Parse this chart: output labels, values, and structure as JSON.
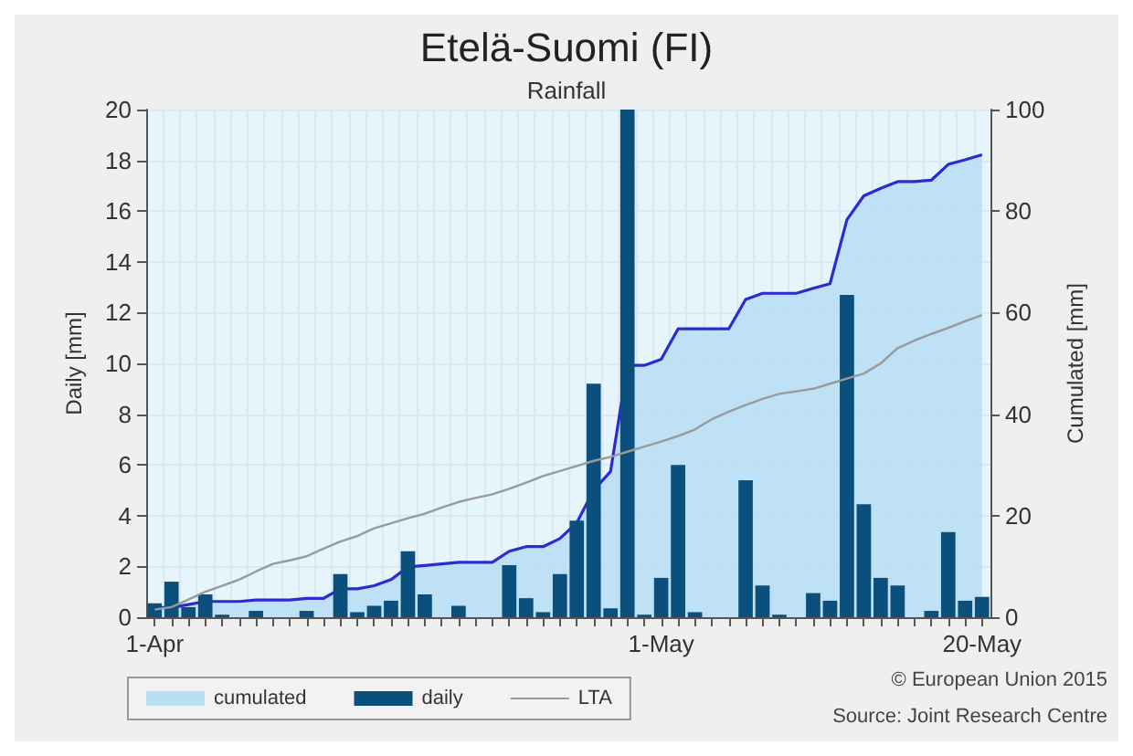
{
  "chart_data": {
    "type": "bar",
    "title": "Etelä-Suomi (FI)",
    "subtitle": "Rainfall",
    "ylabel": "Daily [mm]",
    "y2label": "Cumulated [mm]",
    "categories": [
      "1-Apr",
      null,
      null,
      null,
      null,
      null,
      null,
      null,
      null,
      null,
      null,
      null,
      null,
      null,
      null,
      null,
      null,
      null,
      null,
      null,
      null,
      null,
      null,
      null,
      null,
      null,
      null,
      null,
      null,
      null,
      "1-May",
      null,
      null,
      null,
      null,
      null,
      null,
      null,
      null,
      null,
      null,
      null,
      null,
      null,
      null,
      null,
      null,
      null,
      null,
      "20-May"
    ],
    "series": [
      {
        "name": "cumulated",
        "type": "area",
        "axis": "y2",
        "color": "#2b2bd1",
        "values": [
          1.9,
          1.9,
          2.5,
          3.1,
          3.1,
          3.1,
          3.4,
          3.4,
          3.4,
          3.7,
          3.7,
          5.6,
          5.6,
          6.2,
          7.4,
          9.9,
          10.2,
          10.5,
          10.8,
          10.8,
          10.8,
          13.0,
          13.9,
          13.9,
          15.5,
          18.6,
          25.0,
          28.7,
          49.6,
          49.6,
          50.8,
          56.8,
          56.8,
          56.8,
          56.8,
          62.6,
          63.8,
          63.8,
          63.8,
          64.8,
          65.7,
          78.3,
          83.0,
          84.5,
          85.8,
          85.8,
          86.1,
          89.2,
          90.1,
          91.1
        ]
      },
      {
        "name": "daily",
        "type": "bar",
        "color": "#0b4f7d",
        "values": [
          0.55,
          1.4,
          0.4,
          0.9,
          0.1,
          null,
          0.25,
          null,
          null,
          0.25,
          null,
          1.7,
          0.2,
          0.45,
          0.65,
          2.6,
          0.9,
          null,
          0.45,
          null,
          null,
          2.05,
          0.75,
          0.2,
          1.7,
          3.8,
          9.2,
          0.35,
          20,
          0.1,
          1.55,
          6.0,
          0.2,
          null,
          null,
          5.4,
          1.25,
          0.1,
          null,
          0.95,
          0.65,
          12.7,
          4.45,
          1.55,
          1.25,
          null,
          0.25,
          3.35,
          0.65,
          0.8
        ]
      },
      {
        "name": "LTA",
        "type": "line",
        "axis": "y2",
        "color": "#9a9a9a",
        "values": [
          1.5,
          2,
          3.5,
          5,
          6.2,
          7.4,
          9,
          10.5,
          11.2,
          12,
          13.5,
          14.9,
          16,
          17.5,
          18.5,
          19.5,
          20.4,
          21.6,
          22.7,
          23.5,
          24.2,
          25.3,
          26.5,
          27.8,
          28.8,
          29.8,
          30.8,
          31.6,
          32.6,
          33.6,
          34.6,
          35.7,
          37,
          39,
          40.5,
          41.8,
          43,
          44,
          44.5,
          45,
          46,
          47,
          48,
          50,
          53,
          54.5,
          55.8,
          57,
          58.3,
          59.5
        ]
      }
    ],
    "ylim": [
      0,
      20
    ],
    "yticks": [
      0,
      2,
      4,
      6,
      8,
      10,
      12,
      14,
      16,
      18,
      20
    ],
    "y2lim": [
      0,
      100
    ],
    "y2ticks": [
      0,
      20,
      40,
      60,
      80,
      100
    ],
    "grid": true,
    "legend": "bottom left",
    "marker": "none",
    "annotations": [
      "© European Union 2015",
      "Source: Joint Research Centre"
    ]
  }
}
